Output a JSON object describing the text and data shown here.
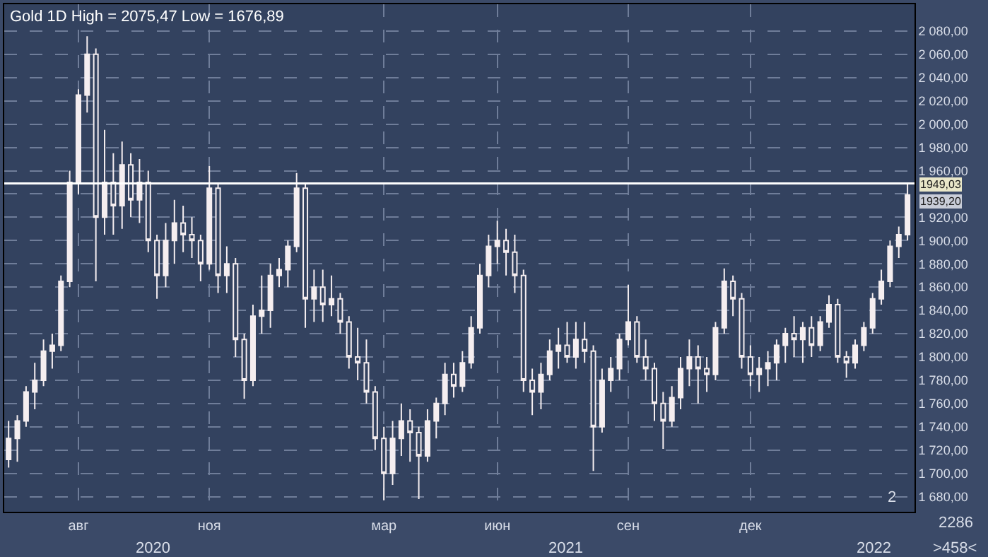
{
  "chart_data": {
    "type": "candlestick",
    "title": "Gold 1D High = 2075,47 Low = 1676,89",
    "color": "#f5eef0",
    "grid": true,
    "ylim": [
      1667,
      2103
    ],
    "categories": [
      null,
      null,
      null,
      null,
      null,
      null,
      null,
      null,
      "авг",
      null,
      null,
      null,
      null,
      null,
      null,
      null,
      null,
      null,
      null,
      null,
      null,
      null,
      null,
      "ноя",
      null,
      null,
      null,
      null,
      null,
      null,
      null,
      null,
      null,
      null,
      null,
      null,
      null,
      null,
      null,
      null,
      null,
      null,
      null,
      "мар",
      null,
      null,
      null,
      null,
      null,
      null,
      null,
      null,
      null,
      null,
      null,
      null,
      "июн",
      null,
      null,
      null,
      null,
      null,
      null,
      null,
      null,
      null,
      null,
      null,
      null,
      null,
      null,
      "сен",
      null,
      null,
      null,
      null,
      null,
      null,
      null,
      null,
      null,
      null,
      null,
      null,
      null,
      "дек",
      null,
      null,
      null,
      null,
      null,
      null,
      null,
      null,
      null,
      null,
      null,
      null,
      null,
      null,
      null,
      null,
      null,
      null
    ],
    "yticks": [
      {
        "value": 1680,
        "label": "1 680,00"
      },
      {
        "value": 1700,
        "label": "1 700,00"
      },
      {
        "value": 1720,
        "label": "1 720,00"
      },
      {
        "value": 1740,
        "label": "1 740,00"
      },
      {
        "value": 1760,
        "label": "1 760,00"
      },
      {
        "value": 1780,
        "label": "1 780,00"
      },
      {
        "value": 1800,
        "label": "1 800,00"
      },
      {
        "value": 1820,
        "label": "1 820,00"
      },
      {
        "value": 1840,
        "label": "1 840,00"
      },
      {
        "value": 1860,
        "label": "1 860,00"
      },
      {
        "value": 1880,
        "label": "1 880,00"
      },
      {
        "value": 1900,
        "label": "1 900,00"
      },
      {
        "value": 1920,
        "label": "1 920,00"
      },
      {
        "value": 1940,
        "label": null
      },
      {
        "value": 1960,
        "label": "1 960,00"
      },
      {
        "value": 1980,
        "label": "1 980,00"
      },
      {
        "value": 2000,
        "label": "2 000,00"
      },
      {
        "value": 2020,
        "label": "2 020,00"
      },
      {
        "value": 2040,
        "label": "2 040,00"
      },
      {
        "value": 2060,
        "label": "2 060,00"
      },
      {
        "value": 2080,
        "label": "2 080,00"
      }
    ],
    "ref_lines": [
      {
        "axis": "y",
        "value": 1949.03,
        "label": "1949,03",
        "color": "#ffffff"
      }
    ],
    "annotations": [
      "2020",
      "2021",
      "2022",
      "2286",
      ">458<",
      "2",
      "1939,20"
    ],
    "ohlc": [
      [
        1712,
        1745,
        1705,
        1730
      ],
      [
        1730,
        1750,
        1710,
        1745
      ],
      [
        1745,
        1775,
        1740,
        1770
      ],
      [
        1770,
        1795,
        1755,
        1780
      ],
      [
        1780,
        1815,
        1775,
        1805
      ],
      [
        1805,
        1820,
        1790,
        1810
      ],
      [
        1810,
        1870,
        1805,
        1865
      ],
      [
        1865,
        1960,
        1860,
        1950
      ],
      [
        1950,
        2030,
        1940,
        2025
      ],
      [
        2025,
        2075.47,
        2010,
        2060
      ],
      [
        2060,
        2065,
        1865,
        1920
      ],
      [
        1920,
        1995,
        1905,
        1950
      ],
      [
        1950,
        1975,
        1905,
        1930
      ],
      [
        1930,
        1985,
        1910,
        1965
      ],
      [
        1965,
        1975,
        1920,
        1935
      ],
      [
        1935,
        1970,
        1915,
        1950
      ],
      [
        1950,
        1960,
        1890,
        1900
      ],
      [
        1900,
        1905,
        1850,
        1870
      ],
      [
        1870,
        1915,
        1860,
        1900
      ],
      [
        1900,
        1935,
        1880,
        1915
      ],
      [
        1915,
        1930,
        1890,
        1905
      ],
      [
        1905,
        1920,
        1885,
        1900
      ],
      [
        1900,
        1905,
        1865,
        1880
      ],
      [
        1880,
        1964,
        1875,
        1945
      ],
      [
        1945,
        1950,
        1855,
        1870
      ],
      [
        1870,
        1895,
        1855,
        1880
      ],
      [
        1880,
        1885,
        1800,
        1815
      ],
      [
        1815,
        1820,
        1764,
        1780
      ],
      [
        1780,
        1845,
        1775,
        1835
      ],
      [
        1835,
        1870,
        1820,
        1840
      ],
      [
        1840,
        1880,
        1825,
        1870
      ],
      [
        1870,
        1885,
        1860,
        1875
      ],
      [
        1875,
        1900,
        1860,
        1895
      ],
      [
        1895,
        1958,
        1890,
        1945
      ],
      [
        1945,
        1950,
        1825,
        1850
      ],
      [
        1850,
        1875,
        1830,
        1860
      ],
      [
        1860,
        1875,
        1830,
        1845
      ],
      [
        1845,
        1870,
        1835,
        1850
      ],
      [
        1850,
        1855,
        1820,
        1830
      ],
      [
        1830,
        1835,
        1790,
        1800
      ],
      [
        1800,
        1825,
        1780,
        1795
      ],
      [
        1795,
        1815,
        1760,
        1770
      ],
      [
        1770,
        1775,
        1720,
        1730
      ],
      [
        1730,
        1740,
        1676.89,
        1700
      ],
      [
        1700,
        1745,
        1690,
        1730
      ],
      [
        1730,
        1760,
        1715,
        1745
      ],
      [
        1745,
        1755,
        1710,
        1735
      ],
      [
        1735,
        1740,
        1678,
        1715
      ],
      [
        1715,
        1755,
        1710,
        1745
      ],
      [
        1745,
        1765,
        1730,
        1760
      ],
      [
        1760,
        1795,
        1750,
        1785
      ],
      [
        1785,
        1795,
        1765,
        1775
      ],
      [
        1775,
        1805,
        1770,
        1795
      ],
      [
        1795,
        1835,
        1790,
        1825
      ],
      [
        1825,
        1880,
        1820,
        1870
      ],
      [
        1870,
        1905,
        1860,
        1895
      ],
      [
        1895,
        1917,
        1880,
        1900
      ],
      [
        1900,
        1910,
        1870,
        1890
      ],
      [
        1890,
        1905,
        1855,
        1870
      ],
      [
        1870,
        1875,
        1770,
        1780
      ],
      [
        1780,
        1790,
        1750,
        1770
      ],
      [
        1770,
        1795,
        1755,
        1785
      ],
      [
        1785,
        1815,
        1780,
        1805
      ],
      [
        1805,
        1825,
        1790,
        1810
      ],
      [
        1810,
        1830,
        1795,
        1800
      ],
      [
        1800,
        1830,
        1790,
        1815
      ],
      [
        1815,
        1830,
        1795,
        1805
      ],
      [
        1805,
        1810,
        1702,
        1740
      ],
      [
        1740,
        1790,
        1735,
        1780
      ],
      [
        1780,
        1800,
        1770,
        1790
      ],
      [
        1790,
        1820,
        1780,
        1815
      ],
      [
        1815,
        1862,
        1810,
        1830
      ],
      [
        1830,
        1835,
        1795,
        1800
      ],
      [
        1800,
        1815,
        1780,
        1790
      ],
      [
        1790,
        1795,
        1745,
        1760
      ],
      [
        1760,
        1770,
        1721,
        1745
      ],
      [
        1745,
        1775,
        1740,
        1765
      ],
      [
        1765,
        1800,
        1755,
        1790
      ],
      [
        1790,
        1815,
        1775,
        1800
      ],
      [
        1800,
        1810,
        1760,
        1790
      ],
      [
        1790,
        1800,
        1770,
        1785
      ],
      [
        1785,
        1830,
        1780,
        1825
      ],
      [
        1825,
        1876,
        1820,
        1865
      ],
      [
        1865,
        1870,
        1835,
        1850
      ],
      [
        1850,
        1855,
        1790,
        1800
      ],
      [
        1800,
        1810,
        1775,
        1785
      ],
      [
        1785,
        1800,
        1770,
        1790
      ],
      [
        1790,
        1805,
        1775,
        1795
      ],
      [
        1795,
        1815,
        1780,
        1810
      ],
      [
        1810,
        1825,
        1795,
        1820
      ],
      [
        1820,
        1835,
        1800,
        1815
      ],
      [
        1815,
        1830,
        1795,
        1825
      ],
      [
        1825,
        1835,
        1800,
        1810
      ],
      [
        1810,
        1835,
        1805,
        1830
      ],
      [
        1830,
        1853,
        1825,
        1845
      ],
      [
        1845,
        1850,
        1795,
        1800
      ],
      [
        1800,
        1805,
        1782,
        1795
      ],
      [
        1795,
        1815,
        1790,
        1810
      ],
      [
        1810,
        1830,
        1805,
        1825
      ],
      [
        1825,
        1855,
        1820,
        1850
      ],
      [
        1850,
        1875,
        1845,
        1865
      ],
      [
        1865,
        1900,
        1860,
        1895
      ],
      [
        1895,
        1912,
        1885,
        1905
      ],
      [
        1905,
        1949.03,
        1900,
        1939.2
      ]
    ]
  }
}
